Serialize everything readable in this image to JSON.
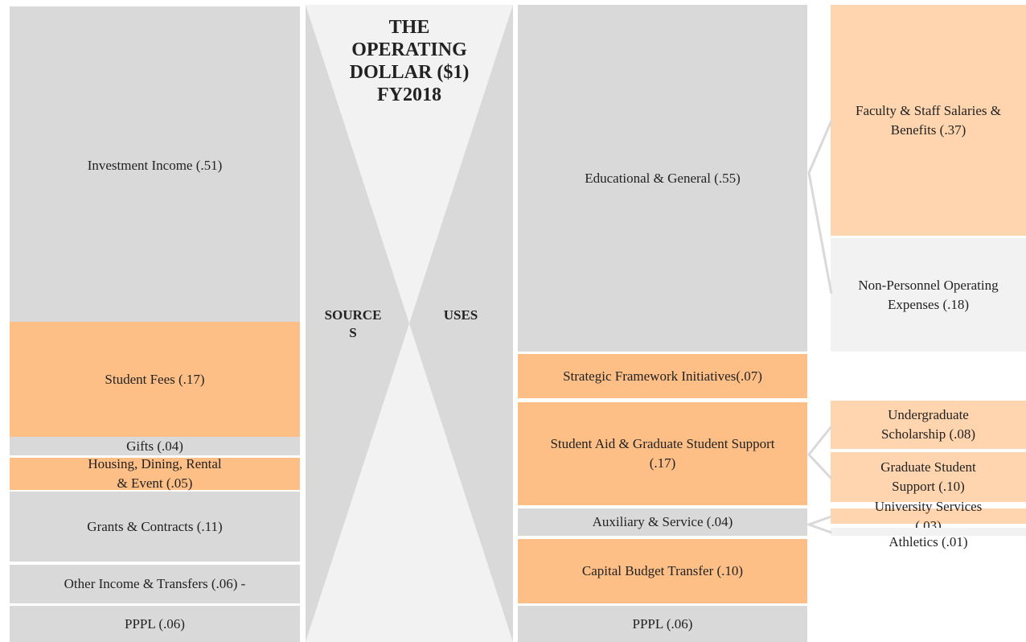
{
  "title_lines": [
    "THE",
    "OPERATING",
    "DOLLAR ($1)",
    "FY2018"
  ],
  "sources_label": "SOURCES",
  "uses_label": "USES",
  "sources": [
    "Investment Income  (.51)",
    "Student Fees (.17)",
    "Gifts (.04)",
    "Housing, Dining, Rental & Event (.05)",
    "Grants & Contracts (.11)",
    "Other Income & Transfers (.06) -",
    "PPPL (.06)"
  ],
  "uses": [
    "Educational & General (.55)",
    "Strategic Framework Initiatives(.07)",
    "Student Aid & Graduate Student Support (.17)",
    "Auxiliary & Service (.04)",
    "Capital Budget Transfer (.10)",
    "PPPL (.06)"
  ],
  "breakdown": [
    "Faculty & Staff Salaries & Benefits (.37)",
    "Non-Personnel Operating Expenses (.18)",
    "Undergraduate Scholarship (.08)",
    "Graduate Student Support (.10)",
    "University Services (.03)",
    "Athletics (.01)"
  ]
}
